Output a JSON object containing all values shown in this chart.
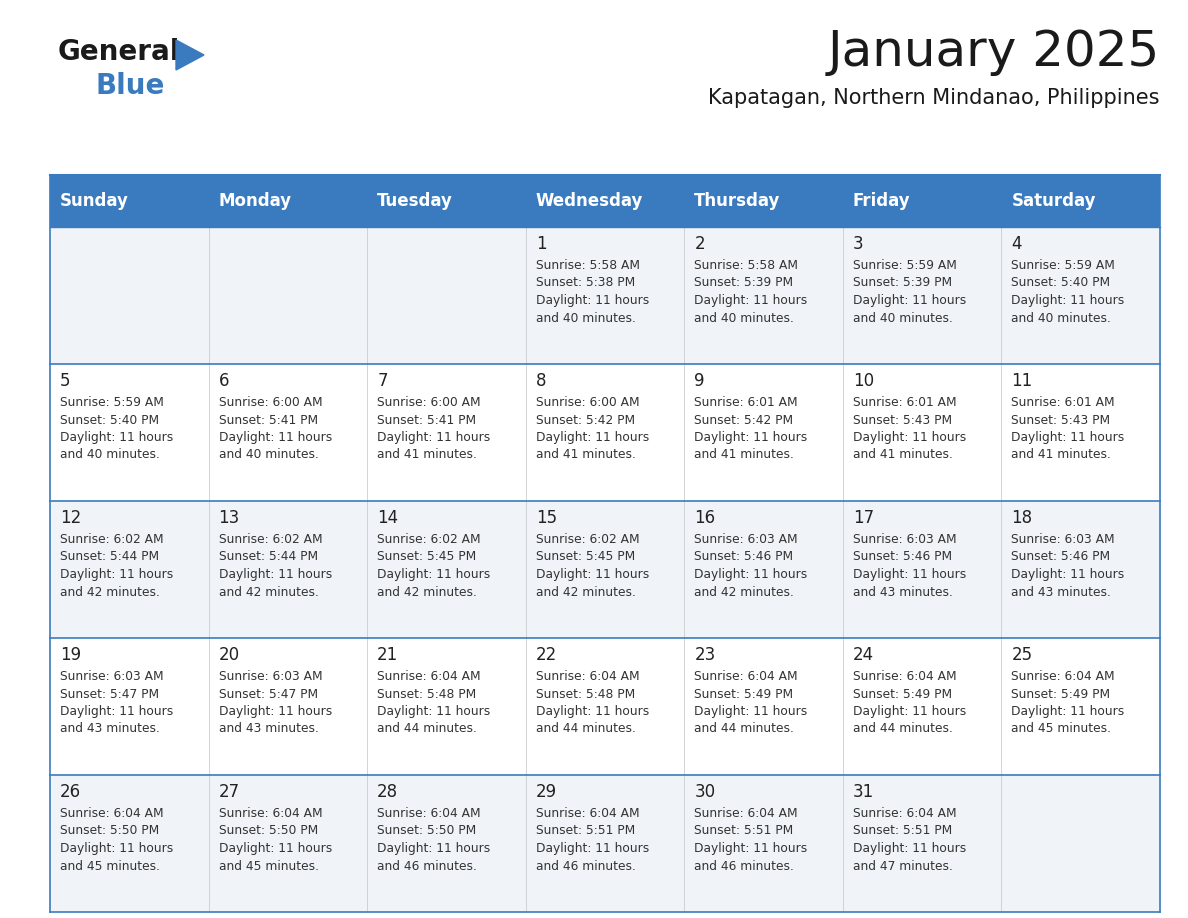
{
  "title": "January 2025",
  "subtitle": "Kapatagan, Northern Mindanao, Philippines",
  "days_of_week": [
    "Sunday",
    "Monday",
    "Tuesday",
    "Wednesday",
    "Thursday",
    "Friday",
    "Saturday"
  ],
  "header_bg": "#3a7bbf",
  "header_text": "#ffffff",
  "cell_bg_odd": "#f0f4f8",
  "cell_bg_even": "#ffffff",
  "cell_text": "#333333",
  "day_num_color": "#222222",
  "border_color": "#3a7bbf",
  "row_divider_color": "#3a7bbf",
  "grid_color": "#cccccc",
  "calendar": [
    [
      null,
      null,
      null,
      {
        "day": 1,
        "sunrise": "5:58 AM",
        "sunset": "5:38 PM",
        "daylight": "11 hours and 40 minutes."
      },
      {
        "day": 2,
        "sunrise": "5:58 AM",
        "sunset": "5:39 PM",
        "daylight": "11 hours and 40 minutes."
      },
      {
        "day": 3,
        "sunrise": "5:59 AM",
        "sunset": "5:39 PM",
        "daylight": "11 hours and 40 minutes."
      },
      {
        "day": 4,
        "sunrise": "5:59 AM",
        "sunset": "5:40 PM",
        "daylight": "11 hours and 40 minutes."
      }
    ],
    [
      {
        "day": 5,
        "sunrise": "5:59 AM",
        "sunset": "5:40 PM",
        "daylight": "11 hours and 40 minutes."
      },
      {
        "day": 6,
        "sunrise": "6:00 AM",
        "sunset": "5:41 PM",
        "daylight": "11 hours and 40 minutes."
      },
      {
        "day": 7,
        "sunrise": "6:00 AM",
        "sunset": "5:41 PM",
        "daylight": "11 hours and 41 minutes."
      },
      {
        "day": 8,
        "sunrise": "6:00 AM",
        "sunset": "5:42 PM",
        "daylight": "11 hours and 41 minutes."
      },
      {
        "day": 9,
        "sunrise": "6:01 AM",
        "sunset": "5:42 PM",
        "daylight": "11 hours and 41 minutes."
      },
      {
        "day": 10,
        "sunrise": "6:01 AM",
        "sunset": "5:43 PM",
        "daylight": "11 hours and 41 minutes."
      },
      {
        "day": 11,
        "sunrise": "6:01 AM",
        "sunset": "5:43 PM",
        "daylight": "11 hours and 41 minutes."
      }
    ],
    [
      {
        "day": 12,
        "sunrise": "6:02 AM",
        "sunset": "5:44 PM",
        "daylight": "11 hours and 42 minutes."
      },
      {
        "day": 13,
        "sunrise": "6:02 AM",
        "sunset": "5:44 PM",
        "daylight": "11 hours and 42 minutes."
      },
      {
        "day": 14,
        "sunrise": "6:02 AM",
        "sunset": "5:45 PM",
        "daylight": "11 hours and 42 minutes."
      },
      {
        "day": 15,
        "sunrise": "6:02 AM",
        "sunset": "5:45 PM",
        "daylight": "11 hours and 42 minutes."
      },
      {
        "day": 16,
        "sunrise": "6:03 AM",
        "sunset": "5:46 PM",
        "daylight": "11 hours and 42 minutes."
      },
      {
        "day": 17,
        "sunrise": "6:03 AM",
        "sunset": "5:46 PM",
        "daylight": "11 hours and 43 minutes."
      },
      {
        "day": 18,
        "sunrise": "6:03 AM",
        "sunset": "5:46 PM",
        "daylight": "11 hours and 43 minutes."
      }
    ],
    [
      {
        "day": 19,
        "sunrise": "6:03 AM",
        "sunset": "5:47 PM",
        "daylight": "11 hours and 43 minutes."
      },
      {
        "day": 20,
        "sunrise": "6:03 AM",
        "sunset": "5:47 PM",
        "daylight": "11 hours and 43 minutes."
      },
      {
        "day": 21,
        "sunrise": "6:04 AM",
        "sunset": "5:48 PM",
        "daylight": "11 hours and 44 minutes."
      },
      {
        "day": 22,
        "sunrise": "6:04 AM",
        "sunset": "5:48 PM",
        "daylight": "11 hours and 44 minutes."
      },
      {
        "day": 23,
        "sunrise": "6:04 AM",
        "sunset": "5:49 PM",
        "daylight": "11 hours and 44 minutes."
      },
      {
        "day": 24,
        "sunrise": "6:04 AM",
        "sunset": "5:49 PM",
        "daylight": "11 hours and 44 minutes."
      },
      {
        "day": 25,
        "sunrise": "6:04 AM",
        "sunset": "5:49 PM",
        "daylight": "11 hours and 45 minutes."
      }
    ],
    [
      {
        "day": 26,
        "sunrise": "6:04 AM",
        "sunset": "5:50 PM",
        "daylight": "11 hours and 45 minutes."
      },
      {
        "day": 27,
        "sunrise": "6:04 AM",
        "sunset": "5:50 PM",
        "daylight": "11 hours and 45 minutes."
      },
      {
        "day": 28,
        "sunrise": "6:04 AM",
        "sunset": "5:50 PM",
        "daylight": "11 hours and 46 minutes."
      },
      {
        "day": 29,
        "sunrise": "6:04 AM",
        "sunset": "5:51 PM",
        "daylight": "11 hours and 46 minutes."
      },
      {
        "day": 30,
        "sunrise": "6:04 AM",
        "sunset": "5:51 PM",
        "daylight": "11 hours and 46 minutes."
      },
      {
        "day": 31,
        "sunrise": "6:04 AM",
        "sunset": "5:51 PM",
        "daylight": "11 hours and 47 minutes."
      },
      null
    ]
  ],
  "logo_text1": "General",
  "logo_text2": "Blue",
  "logo_triangle_color": "#3a7bbf",
  "logo_text1_color": "#1a1a1a",
  "logo_text2_color": "#3a7bbf",
  "title_fontsize": 36,
  "subtitle_fontsize": 15,
  "header_fontsize": 12,
  "day_num_fontsize": 12,
  "cell_info_fontsize": 8.8
}
